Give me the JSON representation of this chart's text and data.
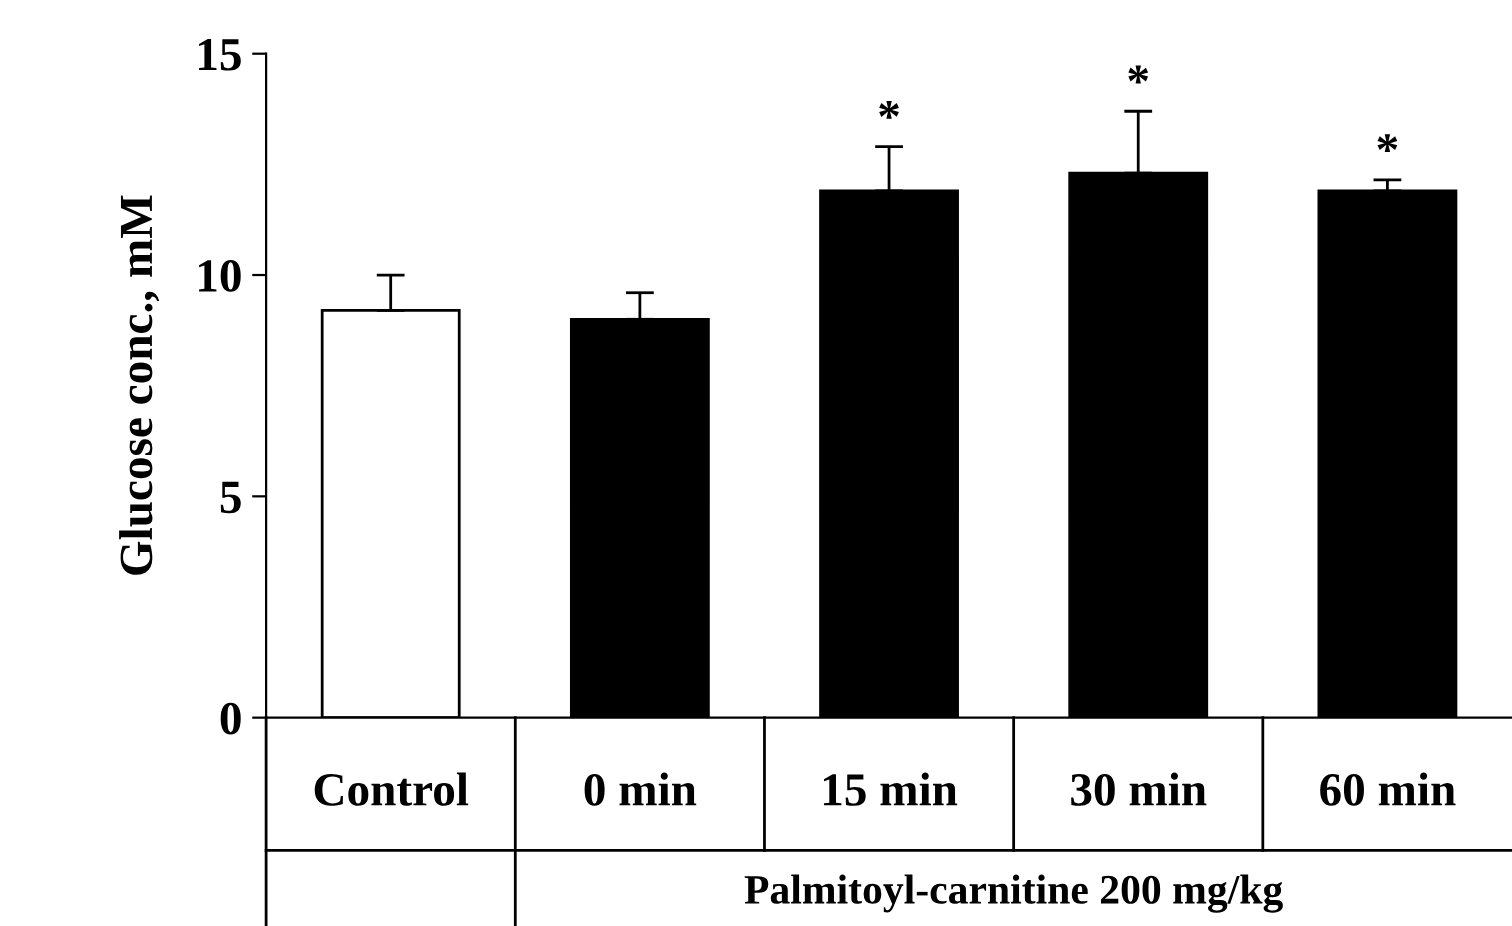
{
  "chart_data": {
    "type": "bar",
    "ylabel": "Glucose conc., mM",
    "categories": [
      "Control",
      "0 min",
      "15 min",
      "30 min",
      "60 min"
    ],
    "values": [
      9.2,
      9.0,
      11.9,
      12.3,
      11.9
    ],
    "colors": [
      "#ffffff",
      "#000000",
      "#000000",
      "#000000",
      "#000000"
    ],
    "errors": [
      [
        9.2,
        10.0
      ],
      [
        9.0,
        9.6
      ],
      [
        11.9,
        12.9
      ],
      [
        12.3,
        13.7
      ],
      [
        11.9,
        12.15
      ]
    ],
    "ylim": [
      0,
      15
    ],
    "yticks": [
      0,
      5,
      10,
      15
    ],
    "grid": false,
    "annotations": [
      {
        "text": "*",
        "x": "15 min",
        "y": 12.9
      },
      {
        "text": "*",
        "x": "30 min",
        "y": 13.7
      },
      {
        "text": "*",
        "x": "60 min",
        "y": 12.15
      },
      "Palmitoyl-carnitine 200 mg/kg"
    ]
  }
}
